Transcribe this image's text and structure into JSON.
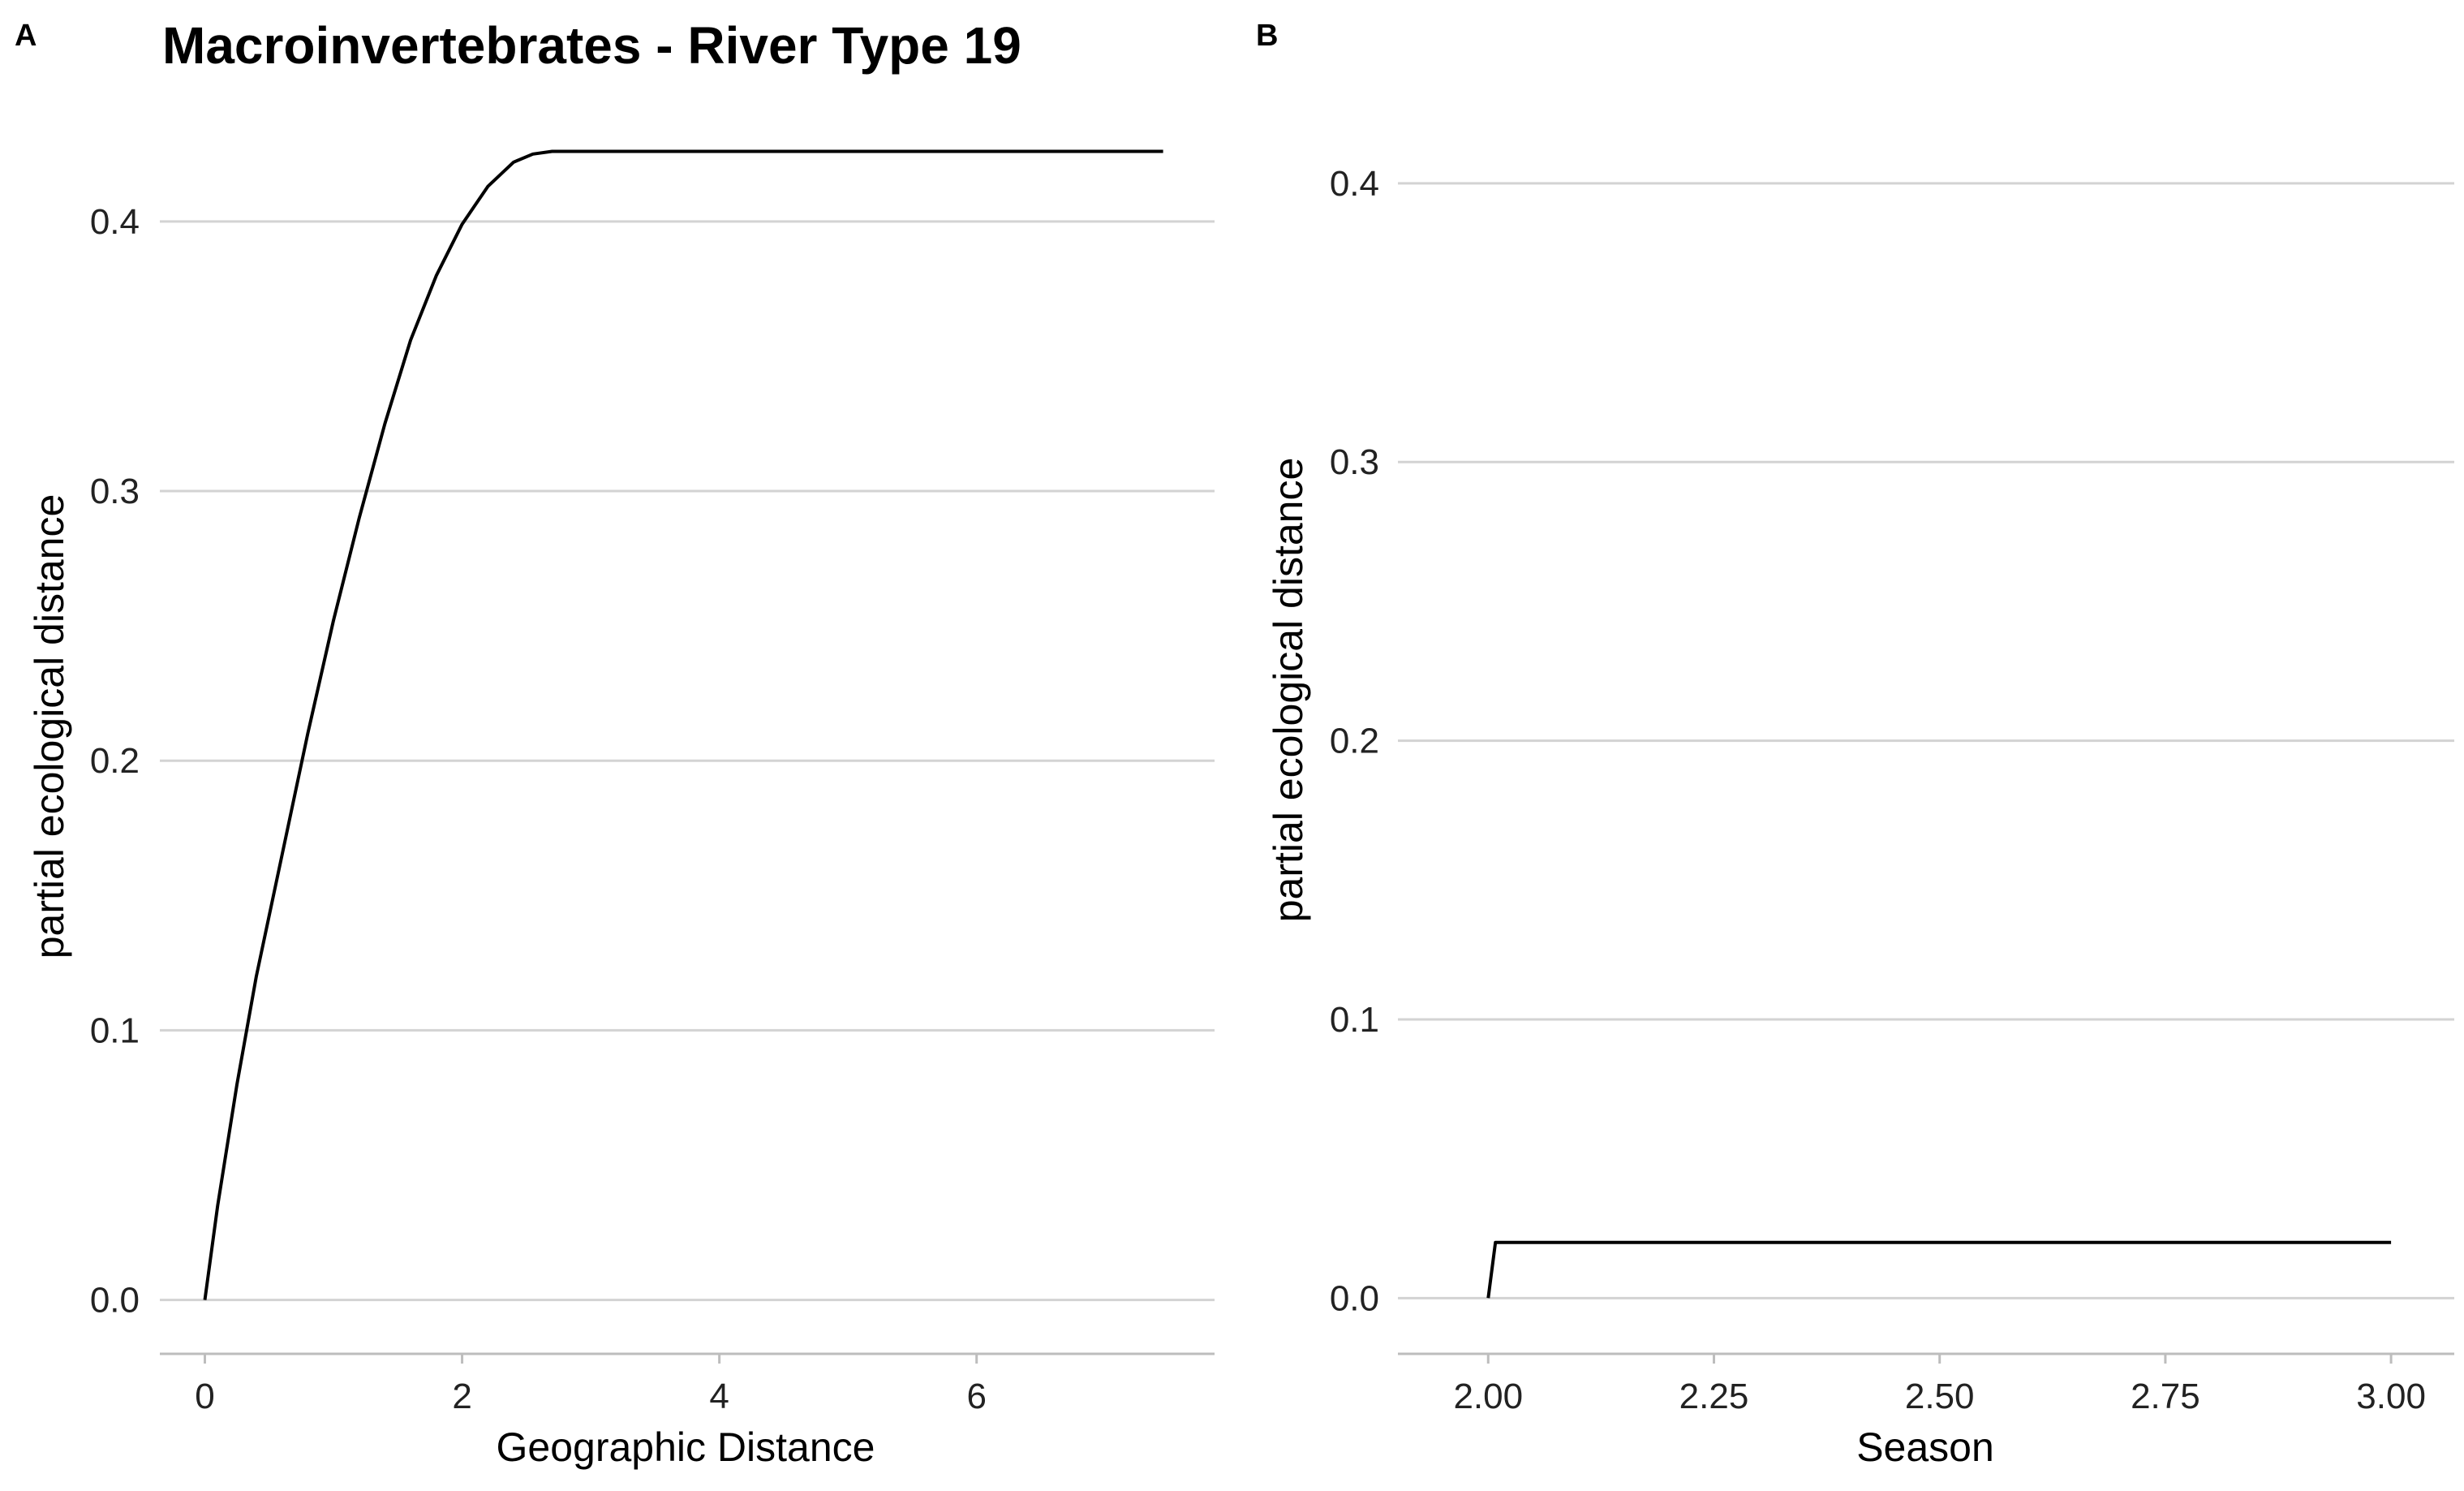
{
  "figure": {
    "title": "Macroinvertebrates - River Type 19"
  },
  "chart_data": [
    {
      "panel": "A",
      "type": "line",
      "title": "Macroinvertebrates - River Type 19",
      "xlabel": "Geographic Distance",
      "ylabel": "partial ecological distance",
      "xlim": [
        -0.35,
        7.85
      ],
      "ylim": [
        -0.02,
        0.44
      ],
      "xticks": [
        0,
        2,
        4,
        6
      ],
      "xtick_labels": [
        "0",
        "2",
        "4",
        "6"
      ],
      "yticks": [
        0.0,
        0.1,
        0.2,
        0.3,
        0.4
      ],
      "ytick_labels": [
        "0.0",
        "0.1",
        "0.2",
        "0.3",
        "0.4"
      ],
      "grid": "horizontal-major",
      "series": [
        {
          "x": [
            0,
            0.1,
            0.25,
            0.4,
            0.6,
            0.8,
            1.0,
            1.2,
            1.4,
            1.6,
            1.8,
            2.0,
            2.2,
            2.4,
            2.55,
            2.7,
            3.0,
            4.0,
            5.0,
            6.0,
            7.0,
            7.45
          ],
          "y": [
            0.0,
            0.035,
            0.08,
            0.12,
            0.165,
            0.21,
            0.252,
            0.29,
            0.325,
            0.356,
            0.38,
            0.399,
            0.413,
            0.422,
            0.425,
            0.426,
            0.426,
            0.426,
            0.426,
            0.426,
            0.426,
            0.426
          ]
        }
      ]
    },
    {
      "panel": "B",
      "type": "line",
      "title": "",
      "xlabel": "Season",
      "ylabel": "partial ecological distance",
      "xlim": [
        1.9,
        3.07
      ],
      "ylim": [
        -0.02,
        0.425
      ],
      "xticks": [
        2.0,
        2.25,
        2.5,
        2.75,
        3.0
      ],
      "xtick_labels": [
        "2.00",
        "2.25",
        "2.50",
        "2.75",
        "3.00"
      ],
      "yticks": [
        0.0,
        0.1,
        0.2,
        0.3,
        0.4
      ],
      "ytick_labels": [
        "0.0",
        "0.1",
        "0.2",
        "0.3",
        "0.4"
      ],
      "grid": "horizontal-major",
      "series": [
        {
          "x": [
            2.0,
            2.008,
            3.0
          ],
          "y": [
            0.0,
            0.02,
            0.02
          ]
        }
      ]
    }
  ]
}
